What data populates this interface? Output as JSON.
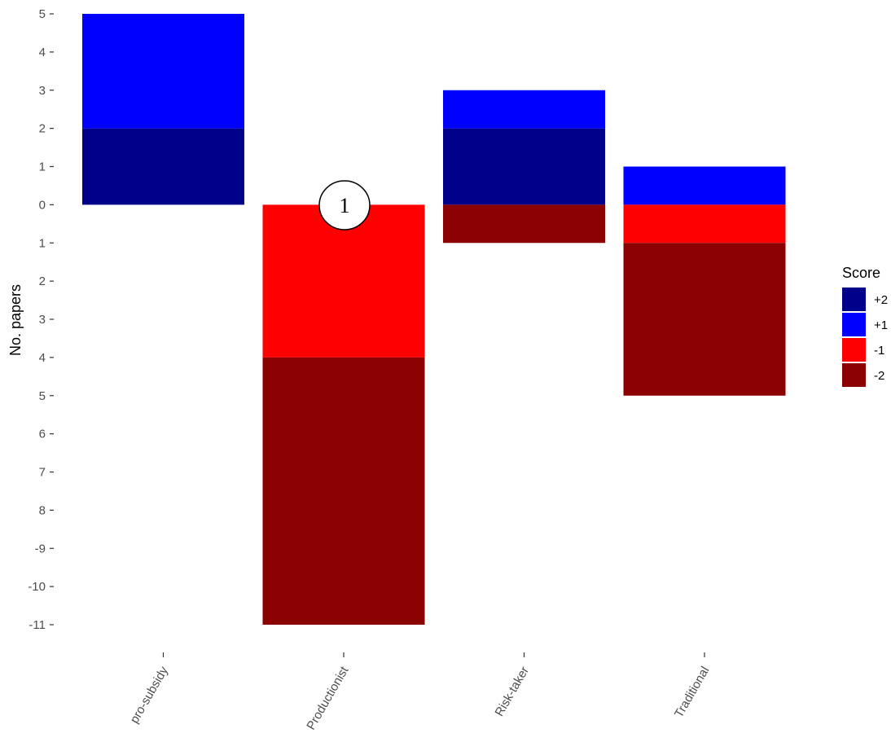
{
  "chart_data": {
    "type": "bar",
    "stacked": true,
    "categories": [
      "pro-subsidy",
      "Productionist",
      "Risk-taker",
      "Traditional"
    ],
    "series": [
      {
        "name": "+2",
        "color": "#00008b",
        "values": [
          2,
          0,
          2,
          0
        ]
      },
      {
        "name": "+1",
        "color": "#0000ff",
        "values": [
          3,
          0,
          1,
          1
        ]
      },
      {
        "name": "-1",
        "color": "#ff0000",
        "values": [
          0,
          -4,
          0,
          -1
        ]
      },
      {
        "name": "-2",
        "color": "#8b0000",
        "values": [
          0,
          -7,
          -1,
          -4
        ]
      }
    ],
    "ylabel": "No. papers",
    "ylim": [
      -11,
      5
    ],
    "yticks": [
      5,
      4,
      3,
      2,
      1,
      0,
      -1,
      -2,
      -3,
      -4,
      -5,
      -6,
      -7,
      -8,
      -9,
      -10,
      -11
    ],
    "ytick_labels": [
      "5",
      "4",
      "3",
      "2",
      "1",
      "0",
      "1",
      "2",
      "3",
      "4",
      "5",
      "6",
      "7",
      "8",
      "-9",
      "-10",
      "-11"
    ],
    "legend": {
      "title": "Score",
      "position": "right",
      "entries": [
        "+2",
        "+1",
        "-1",
        "-2"
      ]
    },
    "grid": false,
    "annotation": {
      "text": "1",
      "category": "Productionist",
      "y": 0
    }
  }
}
